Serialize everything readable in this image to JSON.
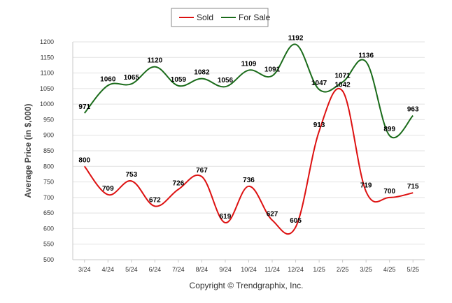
{
  "chart_data": {
    "type": "line",
    "ylabel": "Average Price (in $,000)",
    "xlabel": "",
    "categories": [
      "3/24",
      "4/24",
      "5/24",
      "6/24",
      "7/24",
      "8/24",
      "9/24",
      "10/24",
      "11/24",
      "12/24",
      "1/25",
      "2/25",
      "3/25",
      "4/25",
      "5/25"
    ],
    "ylim": [
      500,
      1200
    ],
    "yticks": [
      500,
      550,
      600,
      650,
      700,
      750,
      800,
      850,
      900,
      950,
      1000,
      1050,
      1100,
      1150,
      1200
    ],
    "grid": true,
    "legend_position": "top-center",
    "series": [
      {
        "name": "Sold",
        "color": "#dd1111",
        "values": [
          800,
          709,
          753,
          672,
          726,
          767,
          619,
          736,
          627,
          605,
          913,
          1042,
          719,
          700,
          715
        ]
      },
      {
        "name": "For Sale",
        "color": "#1a6b1a",
        "values": [
          971,
          1060,
          1065,
          1120,
          1059,
          1082,
          1056,
          1109,
          1091,
          1192,
          1047,
          1071,
          1136,
          899,
          963
        ]
      }
    ]
  },
  "copyright": "Copyright © Trendgraphix, Inc."
}
